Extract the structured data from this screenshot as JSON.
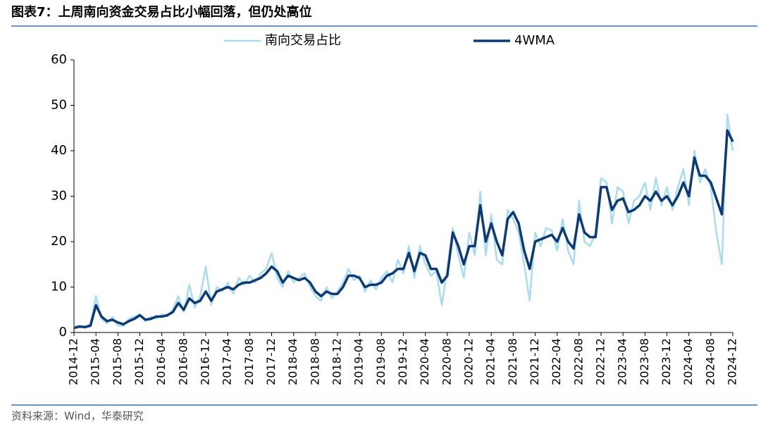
{
  "chart_data": {
    "type": "line",
    "title": "图表7：上周南向资金交易占比小幅回落，但仍处高位",
    "source": "资料来源：Wind，华泰研究",
    "categories": [
      "2014-12",
      null,
      null,
      null,
      "2015-04",
      null,
      null,
      null,
      "2015-08",
      null,
      null,
      null,
      "2015-12",
      null,
      null,
      null,
      "2016-04",
      null,
      null,
      null,
      "2016-08",
      null,
      null,
      null,
      "2016-12",
      null,
      null,
      null,
      "2017-04",
      null,
      null,
      null,
      "2017-08",
      null,
      null,
      null,
      "2017-12",
      null,
      null,
      null,
      "2018-04",
      null,
      null,
      null,
      "2018-08",
      null,
      null,
      null,
      "2018-12",
      null,
      null,
      null,
      "2019-04",
      null,
      null,
      null,
      "2019-08",
      null,
      null,
      null,
      "2019-12",
      null,
      null,
      null,
      "2020-04",
      null,
      null,
      null,
      "2020-08",
      null,
      null,
      null,
      "2020-12",
      null,
      null,
      null,
      "2021-04",
      null,
      null,
      null,
      "2021-08",
      null,
      null,
      null,
      "2021-12",
      null,
      null,
      null,
      "2022-04",
      null,
      null,
      null,
      "2022-08",
      null,
      null,
      null,
      "2022-12",
      null,
      null,
      null,
      "2023-04",
      null,
      null,
      null,
      "2023-08",
      null,
      null,
      null,
      "2023-12",
      null,
      null,
      null,
      "2024-04",
      null,
      null,
      null,
      "2024-08",
      null,
      null,
      null,
      "2024-12"
    ],
    "series": [
      {
        "name": "南向交易占比",
        "color": "#a8dcf0",
        "width": 2.5,
        "values": [
          1.2,
          1.5,
          1.0,
          2.0,
          8.0,
          3.0,
          2.0,
          3.5,
          1.5,
          1.5,
          3.0,
          3.5,
          4.0,
          2.5,
          3.5,
          3.0,
          4.0,
          3.5,
          5.0,
          8.0,
          4.5,
          10.5,
          5.5,
          8.0,
          14.5,
          6.0,
          10.0,
          9.0,
          11.0,
          8.5,
          12.0,
          10.5,
          12.5,
          11.0,
          13.0,
          14.0,
          17.5,
          12.0,
          10.0,
          13.5,
          11.0,
          12.0,
          13.0,
          10.0,
          8.0,
          7.0,
          10.0,
          7.5,
          9.0,
          11.0,
          14.0,
          11.5,
          12.5,
          9.0,
          11.5,
          9.5,
          12.0,
          13.5,
          11.0,
          16.0,
          13.0,
          19.0,
          12.0,
          19.0,
          15.0,
          12.5,
          13.5,
          6.0,
          14.0,
          23.0,
          17.0,
          12.0,
          22.0,
          17.0,
          31.0,
          17.0,
          26.0,
          16.0,
          15.0,
          27.0,
          25.0,
          22.0,
          15.0,
          7.0,
          22.0,
          19.0,
          23.0,
          22.5,
          18.0,
          25.0,
          18.0,
          15.0,
          29.0,
          20.0,
          19.0,
          22.0,
          34.0,
          33.0,
          24.0,
          32.0,
          31.0,
          24.0,
          29.0,
          30.0,
          33.0,
          27.0,
          34.0,
          28.0,
          32.0,
          27.0,
          32.0,
          36.0,
          28.0,
          40.0,
          33.0,
          36.0,
          32.0,
          22.0,
          15.0,
          48.0,
          40.0
        ]
      },
      {
        "name": "4WMA",
        "color": "#0b3a75",
        "width": 3.5,
        "values": [
          1.0,
          1.3,
          1.2,
          1.5,
          6.0,
          3.5,
          2.5,
          2.8,
          2.2,
          1.8,
          2.5,
          3.0,
          3.8,
          2.8,
          3.0,
          3.5,
          3.5,
          3.8,
          4.5,
          6.5,
          5.0,
          7.5,
          6.5,
          7.0,
          9.0,
          7.0,
          9.0,
          9.5,
          10.0,
          9.5,
          10.5,
          11.0,
          11.0,
          11.5,
          12.0,
          13.0,
          14.5,
          13.5,
          11.0,
          12.5,
          12.0,
          11.5,
          12.0,
          11.0,
          9.0,
          8.0,
          9.0,
          8.5,
          8.5,
          10.0,
          12.5,
          12.5,
          12.0,
          10.0,
          10.5,
          10.5,
          11.0,
          12.5,
          13.0,
          14.0,
          14.0,
          17.5,
          13.5,
          17.5,
          17.0,
          14.0,
          14.0,
          11.0,
          12.5,
          22.0,
          19.0,
          15.0,
          19.0,
          19.0,
          28.0,
          20.0,
          24.0,
          20.0,
          17.0,
          25.0,
          26.5,
          24.0,
          18.0,
          14.0,
          20.0,
          20.5,
          21.0,
          21.5,
          20.0,
          23.0,
          20.0,
          18.5,
          26.0,
          22.0,
          21.0,
          21.0,
          32.0,
          32.0,
          27.0,
          29.0,
          29.5,
          26.5,
          27.0,
          28.0,
          30.0,
          29.0,
          31.0,
          29.0,
          30.0,
          28.0,
          30.0,
          33.0,
          30.0,
          38.5,
          34.5,
          34.5,
          33.0,
          29.5,
          26.0,
          44.5,
          42.0
        ]
      }
    ],
    "ylim": [
      0,
      60
    ],
    "yticks": [
      0,
      10,
      20,
      30,
      40,
      50,
      60
    ],
    "grid": false
  }
}
